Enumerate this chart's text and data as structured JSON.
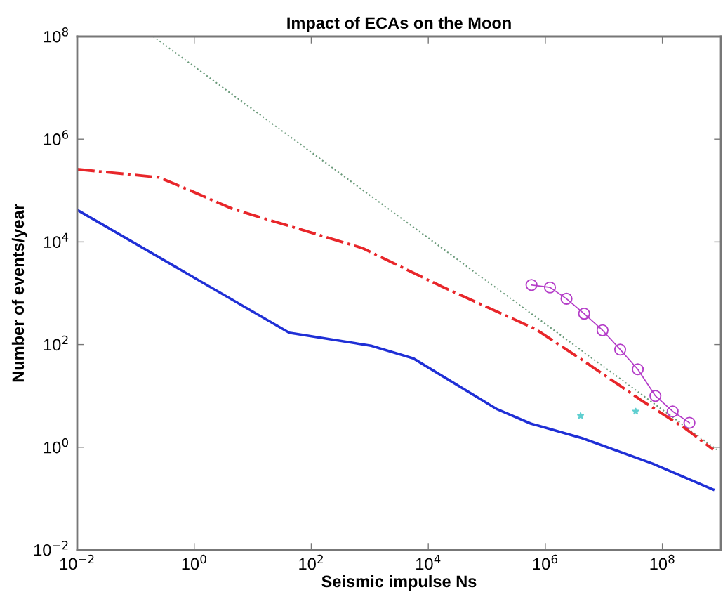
{
  "chart_data": {
    "type": "line",
    "title": "Impact of ECAs on the Moon",
    "xlabel": "Seismic impulse Ns",
    "ylabel": "Number of events/year",
    "log": "xy",
    "grid": false,
    "xlim": [
      0.01,
      1000000000
    ],
    "ylim": [
      0.01,
      100000000
    ],
    "xticks": [
      {
        "value": 0.01,
        "label": "10$^{−2}$"
      },
      {
        "value": 1,
        "label": "10$^{0}$"
      },
      {
        "value": 100,
        "label": "10$^{2}$"
      },
      {
        "value": 10000,
        "label": "10$^{4}$"
      },
      {
        "value": 1000000,
        "label": "10$^{6}$"
      },
      {
        "value": 100000000,
        "label": "10$^{8}$"
      }
    ],
    "yticks": [
      {
        "value": 0.01,
        "label": "10$^{−2}$"
      },
      {
        "value": 1,
        "label": "10$^{0}$"
      },
      {
        "value": 100,
        "label": "10$^{2}$"
      },
      {
        "value": 10000,
        "label": "10$^{4}$"
      },
      {
        "value": 1000000,
        "label": "10$^{6}$"
      },
      {
        "value": 100000000,
        "label": "10$^{8}$"
      }
    ],
    "series": [
      {
        "color": "#6a9a7a",
        "line_style": "dotted",
        "marker": "none",
        "x": [
          0.2,
          850000000
        ],
        "values": [
          100000000,
          0.9
        ]
      },
      {
        "color": "#1f2fd6",
        "line_style": "solid",
        "marker": "none",
        "x": [
          0.01,
          42,
          1050,
          5500,
          150000,
          560000,
          4300000,
          68000000,
          740000000
        ],
        "values": [
          42000,
          170,
          95,
          54,
          5.5,
          2.9,
          1.5,
          0.48,
          0.15
        ]
      },
      {
        "color": "#e8262a",
        "line_style": "dashdot",
        "marker": "none",
        "x": [
          0.01,
          0.25,
          0.5,
          4.5,
          740,
          17000,
          680000,
          4300000,
          43000000,
          250000000,
          740000000
        ],
        "values": [
          260000,
          180000,
          130000,
          44000,
          7600,
          1350,
          200,
          50,
          8.3,
          2.3,
          0.9
        ]
      },
      {
        "color": "#b43cc8",
        "line_style": "solid",
        "marker": "circle",
        "x": [
          580000,
          1200000,
          2300000,
          4600000,
          9500000,
          19000000,
          38000000,
          76000000,
          150000000,
          290000000
        ],
        "values": [
          1450,
          1300,
          780,
          400,
          190,
          80,
          33,
          10,
          5,
          3
        ]
      },
      {
        "type": "scatter",
        "color": "#5fcfd0",
        "marker": "star",
        "x": [
          4000000,
          35000000
        ],
        "values": [
          4.1,
          5
        ]
      }
    ]
  }
}
